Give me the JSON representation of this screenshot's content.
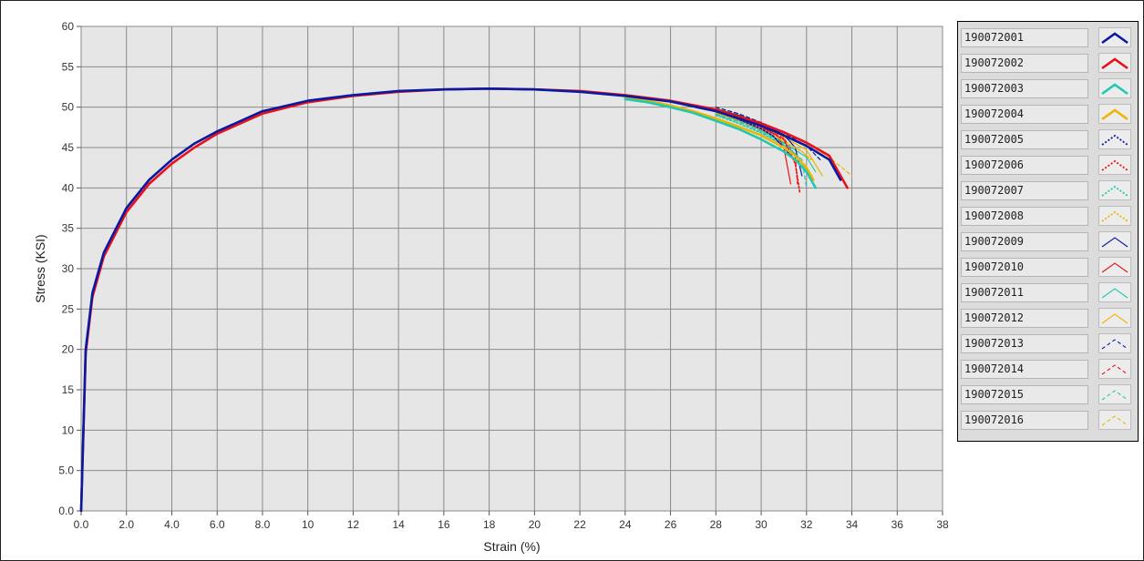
{
  "chart_data": {
    "type": "line",
    "xlabel": "Strain (%)",
    "ylabel": "Stress (KSI)",
    "xlim": [
      0,
      38
    ],
    "ylim": [
      0,
      60
    ],
    "x_ticks": [
      "0.0",
      "2.0",
      "4.0",
      "6.0",
      "8.0",
      "10",
      "12",
      "14",
      "16",
      "18",
      "20",
      "22",
      "24",
      "26",
      "28",
      "30",
      "32",
      "34",
      "36",
      "38"
    ],
    "y_ticks": [
      "0.0",
      "5.0",
      "10",
      "15",
      "20",
      "25",
      "30",
      "35",
      "40",
      "45",
      "50",
      "55",
      "60"
    ],
    "grid": true,
    "legend_position": "right",
    "series": [
      {
        "name": "190072001",
        "color": "#0a1aa0",
        "style": "solid-thick",
        "x": [
          0,
          0.2,
          0.5,
          1,
          2,
          3,
          4,
          5,
          6,
          8,
          10,
          12,
          14,
          16,
          18,
          20,
          22,
          24,
          26,
          28,
          30,
          31,
          32,
          33,
          33.5
        ],
        "y": [
          0,
          20,
          27,
          32,
          37.5,
          41,
          43.5,
          45.5,
          47,
          49.5,
          50.8,
          51.5,
          52,
          52.2,
          52.3,
          52.2,
          51.9,
          51.4,
          50.7,
          49.5,
          47.7,
          46.5,
          45.2,
          43.5,
          41
        ]
      },
      {
        "name": "190072002",
        "color": "#e8101a",
        "style": "solid-thick",
        "x": [
          0,
          0.2,
          0.5,
          1,
          2,
          3,
          4,
          5,
          6,
          8,
          10,
          12,
          14,
          16,
          18,
          20,
          22,
          24,
          26,
          28,
          30,
          31,
          32,
          33,
          33.8
        ],
        "y": [
          0,
          19.5,
          26.5,
          31.5,
          37,
          40.5,
          43,
          45,
          46.7,
          49.2,
          50.6,
          51.4,
          51.9,
          52.2,
          52.3,
          52.2,
          52,
          51.5,
          50.8,
          49.7,
          48,
          46.9,
          45.6,
          44,
          40
        ]
      },
      {
        "name": "190072003",
        "color": "#20c8b0",
        "style": "solid-thick",
        "x": [
          24,
          25,
          26,
          27,
          28,
          29,
          30,
          31,
          31.5,
          32,
          32.4
        ],
        "y": [
          51,
          50.6,
          50,
          49.3,
          48.3,
          47.3,
          46,
          44.5,
          43.5,
          42,
          40
        ]
      },
      {
        "name": "190072004",
        "color": "#f0b400",
        "style": "solid-thick",
        "x": [
          24,
          25,
          26,
          27,
          28,
          29,
          30,
          31,
          31.5,
          32,
          32.3
        ],
        "y": [
          51.2,
          50.8,
          50.2,
          49.5,
          48.6,
          47.6,
          46.5,
          45,
          44,
          42.5,
          41
        ]
      },
      {
        "name": "190072005",
        "color": "#0a1aa0",
        "style": "dotted",
        "x": [
          28,
          29,
          30,
          30.5,
          31,
          31.3
        ],
        "y": [
          49.5,
          48.5,
          47.3,
          46.5,
          45,
          44
        ]
      },
      {
        "name": "190072006",
        "color": "#e8101a",
        "style": "dotted",
        "x": [
          28,
          29,
          30,
          31,
          31.5,
          31.7
        ],
        "y": [
          49.6,
          48.7,
          47.5,
          46,
          43,
          39.5
        ]
      },
      {
        "name": "190072007",
        "color": "#20c8b0",
        "style": "dotted",
        "x": [
          28,
          29,
          30,
          31,
          31.6,
          32
        ],
        "y": [
          49,
          48,
          46.8,
          45.3,
          44,
          42
        ]
      },
      {
        "name": "190072008",
        "color": "#f0b400",
        "style": "dotted",
        "x": [
          28,
          29,
          30,
          31,
          31.8,
          32.2
        ],
        "y": [
          49.3,
          48.4,
          47.2,
          45.8,
          44.5,
          43.5
        ]
      },
      {
        "name": "190072009",
        "color": "#0a1aa0",
        "style": "solid-thin",
        "x": [
          28,
          29,
          30,
          31,
          31.5,
          31.8
        ],
        "y": [
          49.8,
          49,
          48,
          46.6,
          45,
          41.5
        ]
      },
      {
        "name": "190072010",
        "color": "#e8101a",
        "style": "solid-thin",
        "x": [
          28,
          29,
          30,
          30.7,
          31,
          31.3
        ],
        "y": [
          49.5,
          48.7,
          47.6,
          46.5,
          45,
          40.5
        ]
      },
      {
        "name": "190072011",
        "color": "#20c8b0",
        "style": "solid-thin",
        "x": [
          28,
          29,
          30,
          31,
          32,
          32.4
        ],
        "y": [
          49.2,
          48.3,
          47.1,
          45.6,
          43.8,
          42
        ]
      },
      {
        "name": "190072012",
        "color": "#f0b400",
        "style": "solid-thin",
        "x": [
          28,
          29,
          30,
          31,
          32,
          32.7
        ],
        "y": [
          49.6,
          48.8,
          47.7,
          46.3,
          44.7,
          41.5
        ]
      },
      {
        "name": "190072013",
        "color": "#0a1aa0",
        "style": "dashed",
        "x": [
          28,
          29,
          30,
          31,
          32,
          32.6
        ],
        "y": [
          50,
          49.2,
          48.1,
          46.8,
          45.2,
          43.5
        ]
      },
      {
        "name": "190072014",
        "color": "#e8101a",
        "style": "dashed",
        "x": [
          28,
          29,
          30,
          31,
          31.5,
          31.6
        ],
        "y": [
          49.7,
          48.9,
          47.8,
          46.2,
          44,
          40.5
        ]
      },
      {
        "name": "190072015",
        "color": "#20c8b0",
        "style": "dashed",
        "x": [
          28,
          29,
          30,
          31,
          31.8,
          32
        ],
        "y": [
          49.1,
          48.2,
          47,
          45.5,
          43.5,
          40
        ]
      },
      {
        "name": "190072016",
        "color": "#f0b400",
        "style": "dashed",
        "x": [
          28,
          29,
          30,
          31,
          32,
          33,
          34
        ],
        "y": [
          49.9,
          49.1,
          48.1,
          46.9,
          45.5,
          43.8,
          41.5
        ]
      }
    ]
  }
}
